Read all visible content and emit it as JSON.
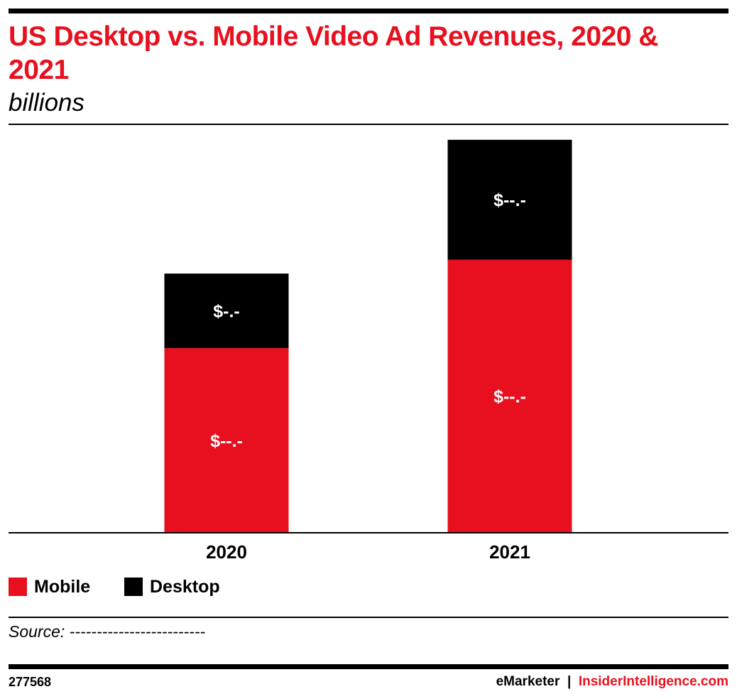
{
  "colors": {
    "accent": "#E8101E",
    "mobile": "#E8101E",
    "desktop": "#000000"
  },
  "header": {
    "title": "US Desktop vs. Mobile Video Ad Revenues, 2020 & 2021",
    "subtitle": "billions"
  },
  "legend": {
    "mobile_label": "Mobile",
    "desktop_label": "Desktop"
  },
  "footer": {
    "source": "Source: -------------------------",
    "chart_id": "277568",
    "brand_left": "eMarketer",
    "brand_separator": "|",
    "brand_right": "InsiderIntelligence.com"
  },
  "chart_data": {
    "type": "bar",
    "stacked": true,
    "categories": [
      "2020",
      "2021"
    ],
    "series": [
      {
        "name": "Mobile",
        "color": "#E8101E",
        "values": [
          26.5,
          39.2
        ],
        "labels": [
          "$--.-",
          "$--.-"
        ]
      },
      {
        "name": "Desktop",
        "color": "#000000",
        "values": [
          10.7,
          17.2
        ],
        "labels": [
          "$-.-",
          "$--.-"
        ]
      }
    ],
    "ylim": [
      0,
      57.5
    ],
    "grid": false,
    "legend_position": "bottom-left"
  }
}
